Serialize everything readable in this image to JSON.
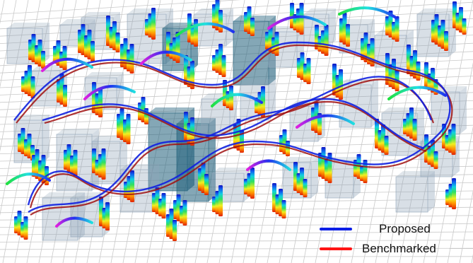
{
  "legend": {
    "items": [
      {
        "label": "Proposed",
        "color": "#0a1ee6"
      },
      {
        "label": "Benchmarked",
        "color": "#ff1414"
      }
    ]
  },
  "scene": {
    "description_colors": {
      "grid": "#c9c9c9",
      "obstacle_light": "#8fa4b8",
      "obstacle_dark": "#1f5f7a",
      "trajectory_proposed": "#1020e0",
      "trajectory_benchmarked": "#a01010",
      "arc_magenta": "#e020e0",
      "arc_cyan": "#20d8e8",
      "arc_green": "#40e040"
    }
  }
}
